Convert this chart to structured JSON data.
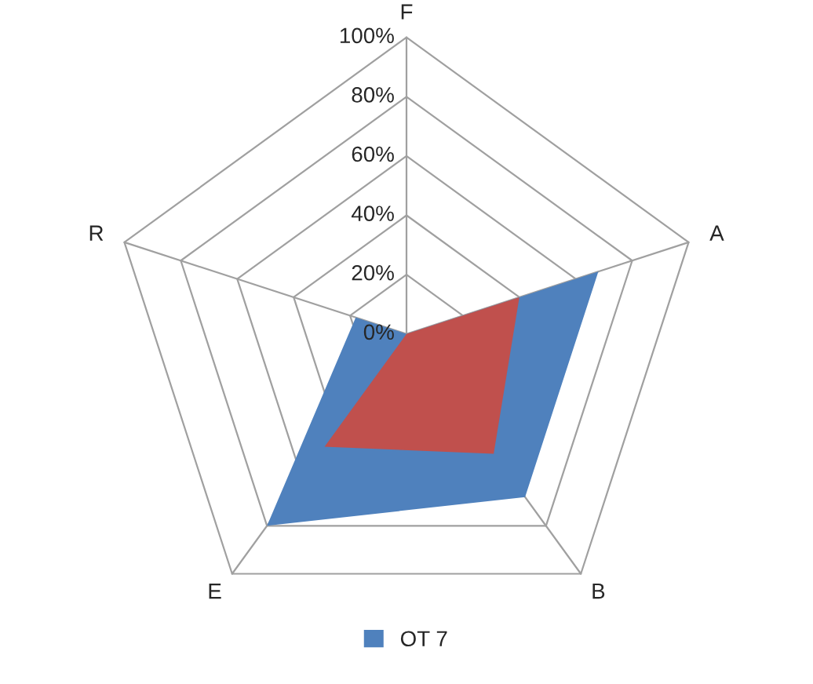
{
  "chart_data": {
    "type": "radar",
    "categories": [
      "F",
      "A",
      "B",
      "E",
      "R"
    ],
    "series": [
      {
        "name": "OT 7",
        "color": "#4f81bd",
        "values": [
          0,
          68,
          68,
          80,
          18
        ]
      },
      {
        "color": "#c0504d",
        "values": [
          0,
          40,
          50,
          47,
          0
        ]
      }
    ],
    "ylim": [
      0,
      100
    ],
    "yticks": [
      {
        "value": 0,
        "label": "0%"
      },
      {
        "value": 20,
        "label": "20%"
      },
      {
        "value": 40,
        "label": "40%"
      },
      {
        "value": 60,
        "label": "60%"
      },
      {
        "value": 80,
        "label": "80%"
      },
      {
        "value": 100,
        "label": "100%"
      }
    ],
    "grid": true,
    "legend": "bottom"
  }
}
